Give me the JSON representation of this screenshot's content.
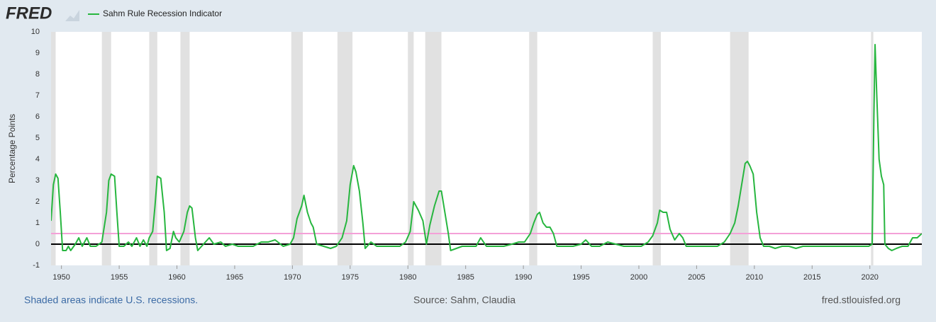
{
  "logo": "FRED",
  "footer": {
    "note": "Shaded areas indicate U.S. recessions.",
    "source": "Source: Sahm, Claudia",
    "site": "fred.stlouisfed.org"
  },
  "chart_data": {
    "type": "line",
    "ylabel": "Percentage Points",
    "xlim": [
      1949.1,
      2024.5
    ],
    "ylim": [
      -1,
      10
    ],
    "xticks": [
      1950,
      1955,
      1960,
      1965,
      1970,
      1975,
      1980,
      1985,
      1990,
      1995,
      2000,
      2005,
      2010,
      2015,
      2020
    ],
    "yticks": [
      -1,
      0,
      1,
      2,
      3,
      4,
      5,
      6,
      7,
      8,
      9,
      10
    ],
    "recessions": [
      [
        1948.9,
        1949.5
      ],
      [
        1953.5,
        1954.3
      ],
      [
        1957.6,
        1958.3
      ],
      [
        1960.3,
        1961.1
      ],
      [
        1969.9,
        1970.9
      ],
      [
        1973.9,
        1975.2
      ],
      [
        1980.0,
        1980.5
      ],
      [
        1981.5,
        1982.9
      ],
      [
        1990.5,
        1991.2
      ],
      [
        2001.2,
        2001.9
      ],
      [
        2007.9,
        2009.5
      ],
      [
        2020.1,
        2020.3
      ]
    ],
    "recession_color": "#e1e1e1",
    "reference_lines": [
      {
        "value": 0,
        "color": "#000000"
      },
      {
        "value": 0.5,
        "color": "#f4a0d8"
      }
    ],
    "x": [
      1949.1,
      1949.3,
      1949.5,
      1949.7,
      1949.9,
      1950.1,
      1950.4,
      1950.6,
      1950.8,
      1951.2,
      1951.5,
      1951.8,
      1952.2,
      1952.5,
      1953.0,
      1953.5,
      1953.9,
      1954.1,
      1954.3,
      1954.6,
      1954.8,
      1955.0,
      1955.4,
      1955.8,
      1956.1,
      1956.5,
      1956.8,
      1957.1,
      1957.4,
      1957.6,
      1957.9,
      1958.1,
      1958.3,
      1958.6,
      1958.9,
      1959.1,
      1959.4,
      1959.7,
      1959.9,
      1960.2,
      1960.6,
      1960.9,
      1961.1,
      1961.3,
      1961.6,
      1961.8,
      1962.3,
      1962.8,
      1963.2,
      1963.8,
      1964.2,
      1964.8,
      1965.3,
      1965.9,
      1966.6,
      1967.3,
      1967.9,
      1968.5,
      1969.2,
      1969.8,
      1970.1,
      1970.4,
      1970.8,
      1971.0,
      1971.3,
      1971.6,
      1971.8,
      1972.1,
      1972.7,
      1973.3,
      1973.8,
      1974.3,
      1974.7,
      1975.0,
      1975.3,
      1975.5,
      1975.8,
      1976.1,
      1976.3,
      1976.8,
      1977.3,
      1978.0,
      1978.6,
      1979.3,
      1979.8,
      1980.2,
      1980.5,
      1980.9,
      1981.3,
      1981.6,
      1981.9,
      1982.3,
      1982.7,
      1982.9,
      1983.2,
      1983.5,
      1983.7,
      1984.2,
      1984.7,
      1985.3,
      1985.9,
      1986.3,
      1986.8,
      1987.5,
      1988.3,
      1989.0,
      1989.6,
      1990.1,
      1990.6,
      1990.9,
      1991.2,
      1991.4,
      1991.7,
      1992.0,
      1992.3,
      1992.6,
      1992.9,
      1993.5,
      1994.3,
      1995.0,
      1995.4,
      1995.9,
      1996.6,
      1997.3,
      1998.0,
      1998.7,
      1999.5,
      2000.2,
      2000.8,
      2001.2,
      2001.6,
      2001.8,
      2002.1,
      2002.4,
      2002.7,
      2003.1,
      2003.5,
      2003.8,
      2004.1,
      2004.7,
      2005.4,
      2006.1,
      2006.8,
      2007.4,
      2007.9,
      2008.3,
      2008.6,
      2008.9,
      2009.2,
      2009.4,
      2009.6,
      2009.9,
      2010.2,
      2010.5,
      2010.8,
      2011.3,
      2011.8,
      2012.4,
      2013.0,
      2013.6,
      2014.2,
      2014.8,
      2015.4,
      2016.0,
      2016.6,
      2017.3,
      2018.0,
      2018.7,
      2019.4,
      2019.9,
      2020.2,
      2020.35,
      2020.45,
      2020.6,
      2020.8,
      2021.0,
      2021.2,
      2021.3,
      2021.6,
      2021.9,
      2022.3,
      2022.8,
      2023.3,
      2023.7,
      2024.1,
      2024.5
    ],
    "series": [
      {
        "name": "Sahm Rule Recession Indicator",
        "color": "#27b63f",
        "values": [
          1.1,
          2.8,
          3.3,
          3.1,
          1.5,
          -0.3,
          -0.3,
          -0.1,
          -0.3,
          0.0,
          0.3,
          -0.1,
          0.3,
          -0.1,
          -0.1,
          0.1,
          1.5,
          3.0,
          3.3,
          3.2,
          1.5,
          -0.1,
          -0.1,
          0.1,
          -0.1,
          0.3,
          -0.1,
          0.2,
          -0.1,
          0.3,
          0.6,
          1.8,
          3.2,
          3.1,
          1.5,
          -0.3,
          -0.2,
          0.6,
          0.3,
          0.1,
          0.6,
          1.5,
          1.8,
          1.7,
          0.3,
          -0.3,
          0.0,
          0.3,
          0.0,
          0.1,
          -0.1,
          0.0,
          -0.1,
          -0.1,
          -0.1,
          0.1,
          0.1,
          0.2,
          -0.1,
          0.0,
          0.3,
          1.2,
          1.8,
          2.3,
          1.5,
          1.0,
          0.8,
          0.0,
          -0.1,
          -0.2,
          -0.1,
          0.3,
          1.1,
          2.8,
          3.7,
          3.4,
          2.5,
          1.0,
          -0.2,
          0.1,
          -0.1,
          -0.1,
          -0.1,
          -0.1,
          0.1,
          0.6,
          2.0,
          1.6,
          1.1,
          0.0,
          0.9,
          1.8,
          2.5,
          2.5,
          1.5,
          0.5,
          -0.3,
          -0.2,
          -0.1,
          -0.1,
          -0.1,
          0.3,
          -0.1,
          -0.1,
          -0.1,
          0.0,
          0.1,
          0.1,
          0.5,
          1.0,
          1.4,
          1.5,
          1.0,
          0.8,
          0.8,
          0.5,
          -0.1,
          -0.1,
          -0.1,
          0.0,
          0.2,
          -0.1,
          -0.1,
          0.1,
          0.0,
          -0.1,
          -0.1,
          -0.1,
          0.1,
          0.4,
          1.0,
          1.6,
          1.5,
          1.5,
          0.7,
          0.2,
          0.5,
          0.3,
          -0.1,
          -0.1,
          -0.1,
          -0.1,
          -0.1,
          0.1,
          0.5,
          1.0,
          1.8,
          2.8,
          3.8,
          3.9,
          3.7,
          3.3,
          1.5,
          0.3,
          -0.1,
          -0.1,
          -0.2,
          -0.1,
          -0.1,
          -0.2,
          -0.1,
          -0.1,
          -0.1,
          -0.1,
          -0.1,
          -0.1,
          -0.1,
          -0.1,
          -0.1,
          -0.1,
          0.0,
          6.0,
          9.4,
          7.0,
          4.0,
          3.2,
          2.8,
          0.0,
          -0.2,
          -0.3,
          -0.2,
          -0.1,
          -0.1,
          0.3,
          0.3,
          0.5
        ]
      }
    ]
  }
}
